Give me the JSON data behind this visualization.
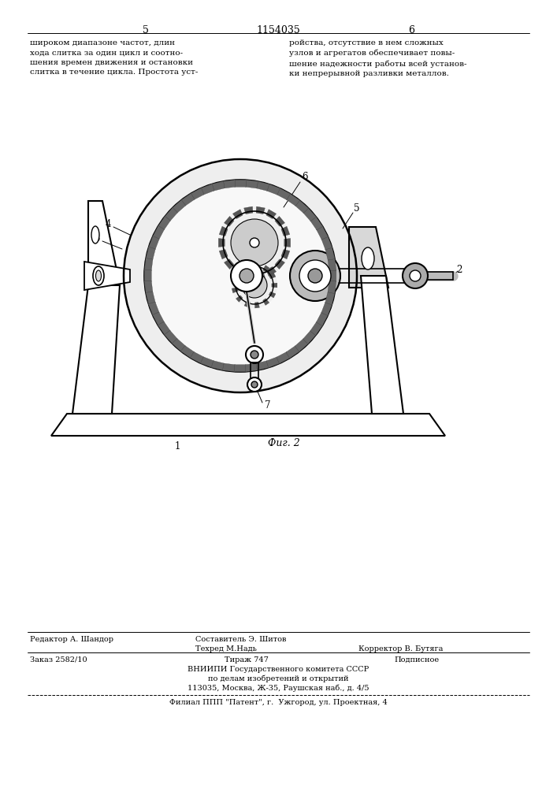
{
  "page_number_left": "5",
  "page_number_right": "6",
  "patent_number": "1154035",
  "text_left": "широком диапазоне частот, длин\nхода слитка за один цикл и соотно-\nшения времен движения и остановки\nслитка в течение цикла. Простота уст-",
  "text_right": "ройства, отсутствие в нем сложных\nузлов и агрегатов обеспечивает повы-\nшение надежности работы всей установ-\nки непрерывной разливки металлов.",
  "fig_label": "Фиг. 2",
  "bg_color": "#ffffff",
  "text_color": "#000000"
}
